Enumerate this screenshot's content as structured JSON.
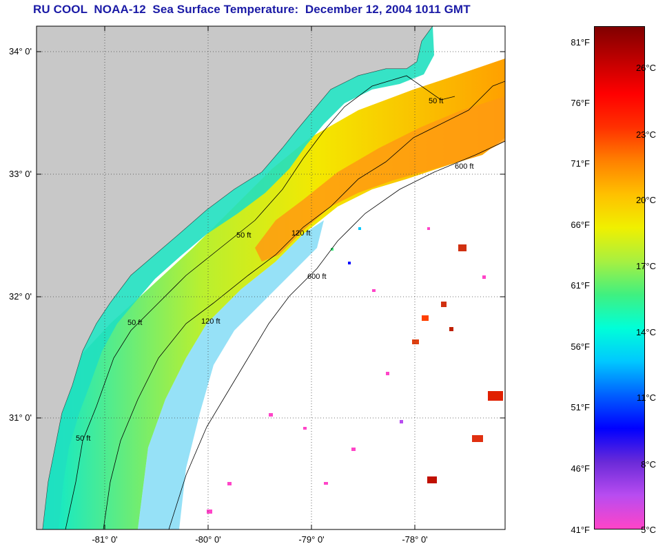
{
  "title": "RU COOL  NOAA-12  Sea Surface Temperature:  December 12, 2004 1011 GMT",
  "colors": {
    "land": "#c8c8c8",
    "cloud": "#ffffff",
    "coastline": "#333333",
    "isobath": "#000000",
    "title": "#1a1aa6"
  },
  "latitude_labels": [
    "34° 0'",
    "33° 0'",
    "32° 0'",
    "31° 0'"
  ],
  "longitude_labels": [
    "-81° 0'",
    "-80° 0'",
    "-79° 0'",
    "-78° 0'"
  ],
  "isobaths": {
    "shallow": "50 ft",
    "mid": "120 ft",
    "deep": "600 ft"
  },
  "colorbar": {
    "fahrenheit": [
      "81°F",
      "76°F",
      "71°F",
      "66°F",
      "61°F",
      "56°F",
      "51°F",
      "46°F",
      "41°F"
    ],
    "celsius": [
      "26°C",
      "23°C",
      "20°C",
      "17°C",
      "14°C",
      "11°C",
      "8°C",
      "5°C"
    ],
    "stops": [
      "#ff44c8",
      "#b84cf0",
      "#6a2ad8",
      "#0000ff",
      "#0060ff",
      "#00c8ff",
      "#00ffd8",
      "#40f080",
      "#a8f040",
      "#f0f000",
      "#ffc000",
      "#ff8000",
      "#ff3000",
      "#ff0000",
      "#c00000",
      "#800000"
    ]
  }
}
